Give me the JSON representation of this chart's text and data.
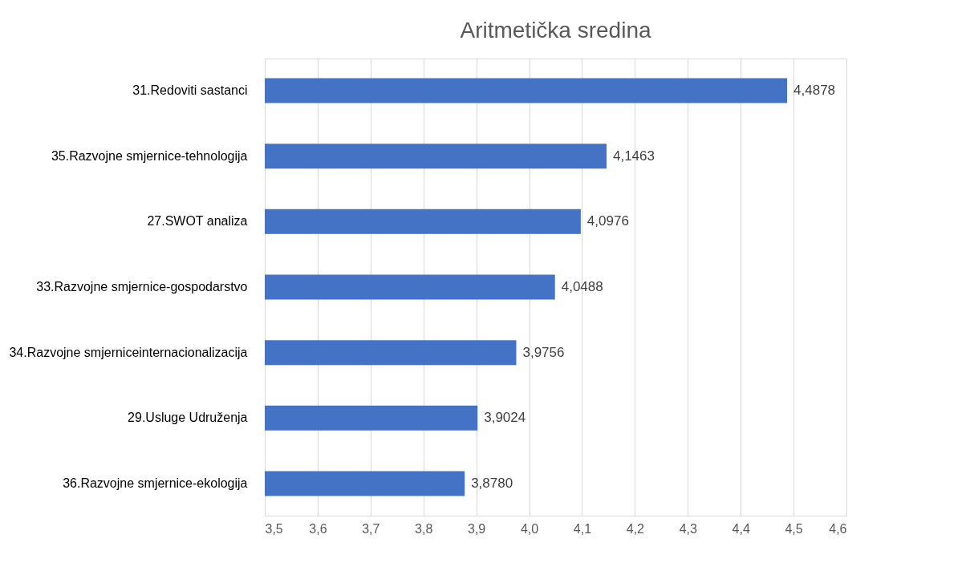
{
  "chart_data": {
    "type": "bar",
    "orientation": "horizontal",
    "title": "Aritmetička sredina",
    "categories": [
      "31.Redoviti sastanci",
      "35.Razvojne smjernice-tehnologija",
      "27.SWOT analiza",
      "33.Razvojne smjernice-gospodarstvo",
      "34.Razvojne smjerniceinternacionalizacija",
      "29.Usluge Udruženja",
      "36.Razvojne smjernice-ekologija"
    ],
    "values": [
      4.4878,
      4.1463,
      4.0976,
      4.0488,
      3.9756,
      3.9024,
      3.878
    ],
    "value_labels": [
      "4,4878",
      "4,1463",
      "4,0976",
      "4,0488",
      "3,9756",
      "3,9024",
      "3,8780"
    ],
    "color": "#4472c4",
    "xlim": [
      3.5,
      4.6
    ],
    "xticks": [
      {
        "value": 3.5,
        "label": "3,5"
      },
      {
        "value": 3.6,
        "label": "3,6"
      },
      {
        "value": 3.7,
        "label": "3,7"
      },
      {
        "value": 3.8,
        "label": "3,8"
      },
      {
        "value": 3.9,
        "label": "3,9"
      },
      {
        "value": 4.0,
        "label": "4,0"
      },
      {
        "value": 4.1,
        "label": "4,1"
      },
      {
        "value": 4.2,
        "label": "4,2"
      },
      {
        "value": 4.3,
        "label": "4,3"
      },
      {
        "value": 4.4,
        "label": "4,4"
      },
      {
        "value": 4.5,
        "label": "4,5"
      },
      {
        "value": 4.6,
        "label": "4,6"
      }
    ],
    "grid": "x"
  }
}
